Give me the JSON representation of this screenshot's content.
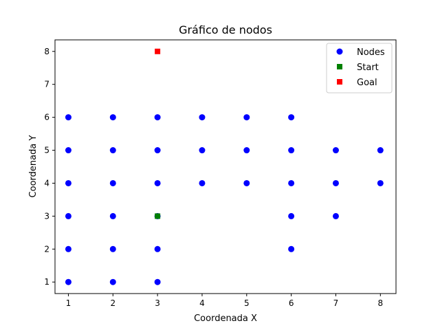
{
  "chart_data": {
    "type": "scatter",
    "title": "Gráfico de nodos",
    "xlabel": "Coordenada X",
    "ylabel": "Coordenada Y",
    "xlim": [
      0.7,
      8.35
    ],
    "ylim": [
      0.65,
      8.35
    ],
    "xticks": [
      1,
      2,
      3,
      4,
      5,
      6,
      7,
      8
    ],
    "yticks": [
      1,
      2,
      3,
      4,
      5,
      6,
      7,
      8
    ],
    "grid": false,
    "legend_position": "top-right",
    "series": [
      {
        "name": "Nodes",
        "marker": "circle",
        "color": "#0000ff",
        "points": [
          [
            1,
            1
          ],
          [
            1,
            2
          ],
          [
            1,
            3
          ],
          [
            1,
            4
          ],
          [
            1,
            5
          ],
          [
            1,
            6
          ],
          [
            2,
            1
          ],
          [
            2,
            2
          ],
          [
            2,
            3
          ],
          [
            2,
            4
          ],
          [
            2,
            5
          ],
          [
            2,
            6
          ],
          [
            3,
            1
          ],
          [
            3,
            2
          ],
          [
            3,
            3
          ],
          [
            3,
            4
          ],
          [
            3,
            5
          ],
          [
            3,
            6
          ],
          [
            4,
            4
          ],
          [
            4,
            5
          ],
          [
            4,
            6
          ],
          [
            5,
            4
          ],
          [
            5,
            5
          ],
          [
            5,
            6
          ],
          [
            6,
            2
          ],
          [
            6,
            3
          ],
          [
            6,
            4
          ],
          [
            6,
            5
          ],
          [
            6,
            6
          ],
          [
            7,
            3
          ],
          [
            7,
            4
          ],
          [
            7,
            5
          ],
          [
            8,
            4
          ],
          [
            8,
            5
          ]
        ]
      },
      {
        "name": "Start",
        "marker": "square",
        "color": "#008000",
        "points": [
          [
            3,
            3
          ]
        ]
      },
      {
        "name": "Goal",
        "marker": "square",
        "color": "#ff0000",
        "points": [
          [
            3,
            8
          ]
        ]
      }
    ]
  }
}
